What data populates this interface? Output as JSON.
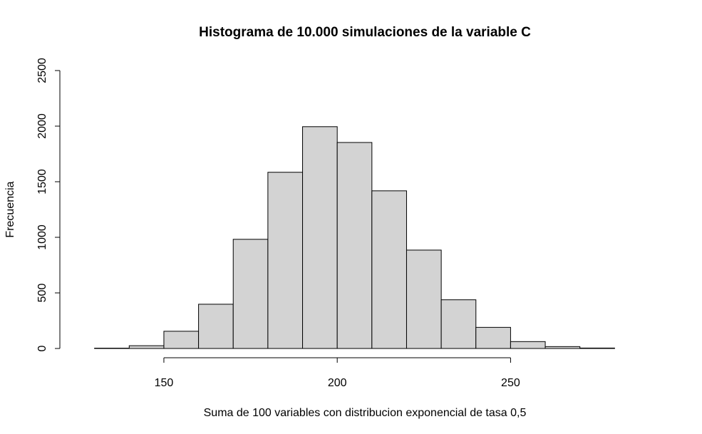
{
  "chart_data": {
    "type": "bar",
    "title": "Histograma de 10.000 simulaciones de la variable C",
    "xlabel": "Suma de 100 variables con distribucion exponencial de tasa 0,5",
    "ylabel": "Frecuencia",
    "bin_edges": [
      130,
      140,
      150,
      160,
      170,
      180,
      190,
      200,
      210,
      220,
      230,
      240,
      250,
      260,
      270,
      280
    ],
    "values": [
      3,
      25,
      155,
      398,
      982,
      1585,
      1995,
      1853,
      1418,
      885,
      438,
      190,
      62,
      17,
      4
    ],
    "xlim": [
      120,
      290
    ],
    "ylim": [
      0,
      2500
    ],
    "xticks": [
      150,
      200,
      250
    ],
    "yticks": [
      0,
      500,
      1000,
      1500,
      2000,
      2500
    ],
    "bar_color": "#d3d3d3",
    "grid": false
  }
}
